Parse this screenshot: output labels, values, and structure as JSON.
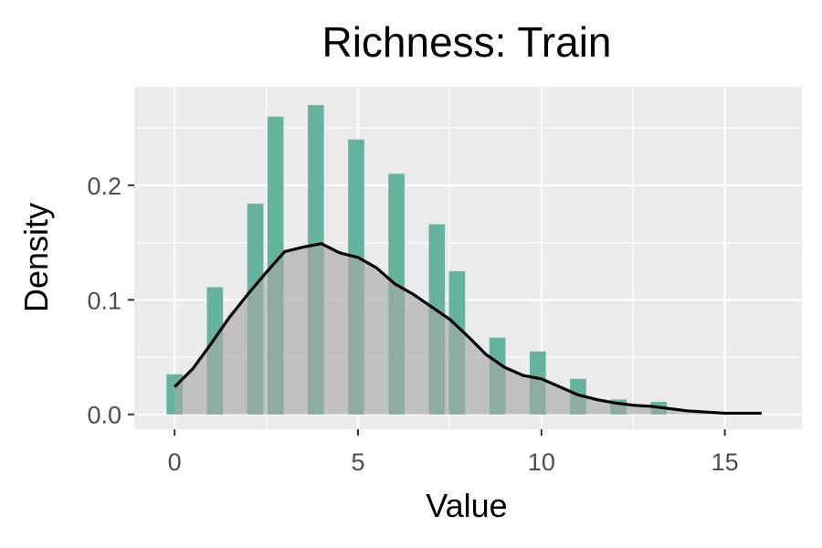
{
  "chart_data": {
    "type": "bar",
    "title": "Richness: Train",
    "xlabel": "Value",
    "ylabel": "Density",
    "xlim": [
      -1.1,
      17.1
    ],
    "ylim": [
      -0.013,
      0.286
    ],
    "xticks": [
      0,
      5,
      10,
      15
    ],
    "xtick_labels": [
      "0",
      "5",
      "10",
      "15"
    ],
    "yticks": [
      0.0,
      0.1,
      0.2
    ],
    "ytick_labels": [
      "0.0",
      "0.1",
      "0.2"
    ],
    "grid": true,
    "legend": "none",
    "histogram": {
      "bar_width": 0.44,
      "color": "#66b2a0",
      "bins": [
        {
          "x": 0.0,
          "y": 0.035
        },
        {
          "x": 1.1,
          "y": 0.111
        },
        {
          "x": 2.2,
          "y": 0.184
        },
        {
          "x": 2.75,
          "y": 0.26
        },
        {
          "x": 3.85,
          "y": 0.27
        },
        {
          "x": 4.95,
          "y": 0.24
        },
        {
          "x": 6.05,
          "y": 0.21
        },
        {
          "x": 7.15,
          "y": 0.166
        },
        {
          "x": 7.7,
          "y": 0.125
        },
        {
          "x": 8.8,
          "y": 0.067
        },
        {
          "x": 9.9,
          "y": 0.055
        },
        {
          "x": 11.0,
          "y": 0.031
        },
        {
          "x": 12.1,
          "y": 0.013
        },
        {
          "x": 13.2,
          "y": 0.011
        }
      ]
    },
    "density": {
      "fill": "#a6a6a6",
      "line_color": "#000000",
      "x": [
        0,
        0.5,
        1,
        1.5,
        2,
        2.5,
        3,
        3.5,
        4,
        4.5,
        5,
        5.5,
        6,
        6.5,
        7,
        7.5,
        8,
        8.5,
        9,
        9.5,
        10,
        10.5,
        11,
        11.5,
        12,
        12.5,
        13,
        13.5,
        14,
        14.5,
        15,
        15.5,
        16
      ],
      "y": [
        0.024,
        0.04,
        0.062,
        0.085,
        0.105,
        0.124,
        0.142,
        0.146,
        0.149,
        0.141,
        0.137,
        0.128,
        0.114,
        0.105,
        0.094,
        0.083,
        0.068,
        0.052,
        0.041,
        0.034,
        0.031,
        0.024,
        0.017,
        0.013,
        0.01,
        0.008,
        0.007,
        0.005,
        0.003,
        0.002,
        0.001,
        0.001,
        0.001
      ]
    }
  }
}
